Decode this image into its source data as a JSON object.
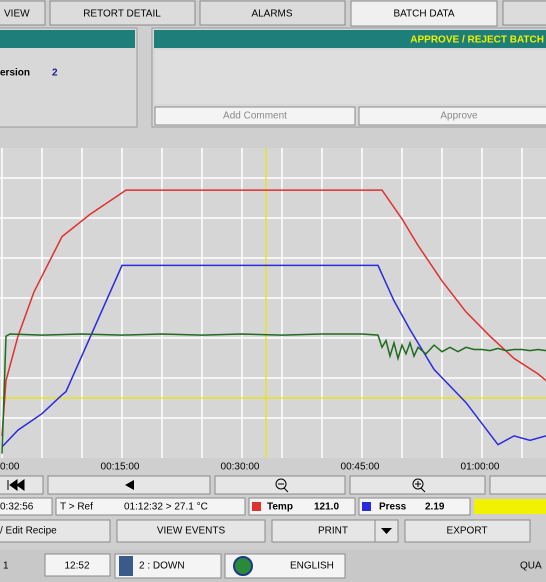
{
  "tabs": [
    "VIEW",
    "RETORT DETAIL",
    "ALARMS",
    "BATCH DATA"
  ],
  "left_panel": {
    "label": "ersion",
    "value": "2"
  },
  "right_panel": {
    "title": "APPROVE / REJECT BATCH",
    "buttons": [
      "Add Comment",
      "Approve"
    ]
  },
  "chart_data": {
    "type": "line",
    "xlim": [
      -0.25,
      68
    ],
    "ylim": [
      0,
      140
    ],
    "xticks": [
      {
        "value": 0,
        "label": "0:00"
      },
      {
        "value": 15,
        "label": "00:15:00"
      },
      {
        "value": 30,
        "label": "00:30:00"
      },
      {
        "value": 45,
        "label": "00:45:00"
      },
      {
        "value": 60,
        "label": "01:00:00"
      }
    ],
    "cursor_x": 33,
    "cursor_y": 27.1,
    "cursor_color": "#e6e600",
    "series": [
      {
        "color": "#e03030",
        "x": [
          0,
          0.5,
          2,
          4,
          7.5,
          11,
          15.5,
          47.5,
          50,
          52,
          55,
          58,
          61,
          64,
          67,
          68
        ],
        "values": [
          10,
          35,
          55,
          75,
          100,
          110,
          121,
          121,
          108,
          96,
          80,
          66,
          55,
          45,
          38,
          35
        ]
      },
      {
        "color": "#2a2ae0",
        "x": [
          0,
          2,
          5,
          7.5,
          8,
          15,
          47,
          49,
          51,
          54,
          58,
          62,
          64,
          66,
          68
        ],
        "values": [
          5,
          12.6,
          20,
          28.5,
          30,
          87,
          87,
          71,
          58,
          40,
          25,
          6,
          10,
          8,
          10
        ]
      },
      {
        "color": "#1f6b1f",
        "x": [
          0,
          0.5,
          1,
          5,
          10,
          15,
          20,
          25,
          30,
          35,
          40,
          45,
          47,
          47.5,
          48,
          48.5,
          49,
          49.5,
          50,
          50.5,
          51,
          51.5,
          52,
          53,
          54,
          55,
          56,
          57,
          58,
          59,
          60,
          61,
          62,
          63,
          64,
          65,
          66,
          67,
          68
        ],
        "values": [
          2,
          55,
          56,
          55.5,
          56,
          55.5,
          56,
          55.5,
          56,
          55.5,
          56,
          56,
          55.5,
          50,
          53,
          46,
          52,
          45,
          51,
          47,
          52,
          46,
          50,
          47,
          51,
          48,
          50,
          48,
          50,
          49,
          49,
          48.5,
          49.5,
          48.5,
          49,
          49,
          48.5,
          49,
          48.5
        ]
      }
    ]
  },
  "readouts": {
    "time": "0:32:56",
    "ref_label": "T > Ref",
    "ref_value": "01:12:32 > 27.1 °C",
    "temp_label": "Temp",
    "temp_value": "121.0",
    "press_label": "Press",
    "press_value": "2.19"
  },
  "buttons": [
    "/ Edit Recipe",
    "VIEW EVENTS",
    "PRINT",
    "EXPORT"
  ],
  "status": {
    "left": "1",
    "clock": "12:52",
    "state": "2 : DOWN",
    "language": "ENGLISH",
    "right": "QUA"
  }
}
